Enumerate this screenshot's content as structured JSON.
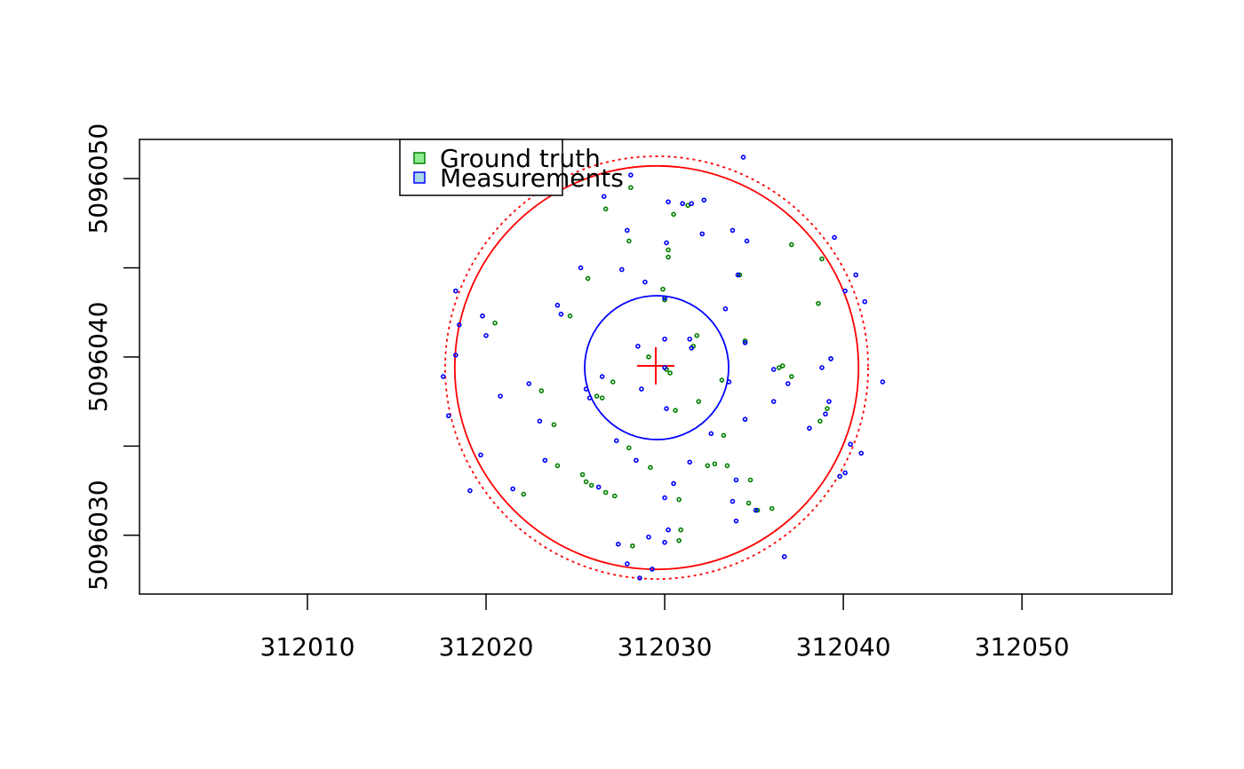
{
  "chart_data": {
    "type": "scatter",
    "xlim": [
      312000.6,
      312058.4
    ],
    "ylim": [
      5096026.7,
      5096052.2
    ],
    "xticks": [
      312010,
      312020,
      312030,
      312040,
      312050
    ],
    "yticks": [
      5096030,
      5096040,
      5096050
    ],
    "yminor_ticks": [
      5096035,
      5096045
    ],
    "legend": "top-left",
    "series": [
      {
        "name": "Ground truth",
        "color": "#008000",
        "legend_fill": "#90ee90",
        "x": [
          312026.7,
          312028.1,
          312030.5,
          312031.3,
          312028.0,
          312030.2,
          312030.2,
          312025.7,
          312037.1,
          312038.8,
          312034.2,
          312029.9,
          312030.0,
          312024.7,
          312020.5,
          312038.6,
          312031.8,
          312031.6,
          312029.1,
          312034.5,
          312036.6,
          312036.4,
          312037.1,
          312033.2,
          312027.1,
          312030.1,
          312030.3,
          312023.1,
          312026.2,
          312026.5,
          312031.9,
          312030.6,
          312039.1,
          312023.8,
          312028.0,
          312033.3,
          312038.7,
          312024.0,
          312029.2,
          312032.4,
          312032.8,
          312033.5,
          312025.4,
          312025.6,
          312025.9,
          312026.7,
          312027.2,
          312022.1,
          312034.8,
          312030.8,
          312034.7,
          312036.0,
          312035.2,
          312030.9,
          312028.2,
          312030.8,
          312039.3
        ],
        "y": [
          5096048.3,
          5096049.5,
          5096048.0,
          5096048.5,
          5096046.5,
          5096046.0,
          5096045.6,
          5096044.4,
          5096046.3,
          5096045.5,
          5096044.6,
          5096043.8,
          5096043.2,
          5096042.3,
          5096041.9,
          5096043.0,
          5096041.2,
          5096040.6,
          5096040.0,
          5096040.9,
          5096039.5,
          5096039.4,
          5096038.9,
          5096038.7,
          5096038.6,
          5096039.3,
          5096039.1,
          5096038.1,
          5096037.8,
          5096037.7,
          5096037.5,
          5096037.0,
          5096037.1,
          5096036.2,
          5096034.9,
          5096035.6,
          5096036.4,
          5096033.9,
          5096033.8,
          5096033.9,
          5096034.0,
          5096033.9,
          5096033.4,
          5096033.0,
          5096032.8,
          5096032.4,
          5096032.2,
          5096032.3,
          5096033.1,
          5096032.0,
          5096031.8,
          5096031.5,
          5096031.4,
          5096030.3,
          5096029.4,
          5096029.7,
          5096039.9
        ]
      },
      {
        "name": "Measurements",
        "color": "#0000ff",
        "legend_fill": "#add8e6",
        "x": [
          312034.4,
          312028.1,
          312026.6,
          312030.2,
          312031.0,
          312031.5,
          312032.2,
          312027.9,
          312033.8,
          312030.1,
          312032.1,
          312034.6,
          312039.5,
          312025.3,
          312027.6,
          312034.1,
          312040.7,
          312028.9,
          312040.1,
          312018.3,
          312030.0,
          312041.2,
          312024.0,
          312024.2,
          312033.4,
          312019.8,
          312018.5,
          312020.0,
          312031.4,
          312034.5,
          312028.5,
          312030.0,
          312031.5,
          312018.3,
          312039.3,
          312030.0,
          312036.1,
          312038.8,
          312026.5,
          312017.6,
          312022.4,
          312025.6,
          312025.8,
          312028.7,
          312033.6,
          312036.9,
          312042.2,
          312020.8,
          312036.1,
          312039.2,
          312017.9,
          312023.0,
          312030.1,
          312034.5,
          312039.0,
          312027.3,
          312032.6,
          312038.1,
          312040.4,
          312019.7,
          312041.0,
          312023.3,
          312028.4,
          312031.4,
          312040.1,
          312034.0,
          312039.8,
          312021.5,
          312019.1,
          312030.5,
          312030.0,
          312026.3,
          312033.8,
          312035.1,
          312030.2,
          312029.1,
          312030.0,
          312027.4,
          312034.0,
          312036.7,
          312027.9,
          312029.3,
          312028.6
        ],
        "y": [
          5096051.2,
          5096050.2,
          5096049.0,
          5096048.7,
          5096048.6,
          5096048.6,
          5096048.8,
          5096047.1,
          5096047.1,
          5096046.4,
          5096046.9,
          5096046.5,
          5096046.7,
          5096045.0,
          5096044.9,
          5096044.6,
          5096044.6,
          5096044.2,
          5096043.7,
          5096043.7,
          5096043.3,
          5096043.1,
          5096042.9,
          5096042.4,
          5096042.7,
          5096042.3,
          5096041.8,
          5096041.2,
          5096041.0,
          5096040.8,
          5096040.6,
          5096041.0,
          5096040.5,
          5096040.1,
          5096039.9,
          5096039.4,
          5096039.3,
          5096039.4,
          5096038.9,
          5096038.9,
          5096038.5,
          5096038.2,
          5096037.7,
          5096038.2,
          5096038.6,
          5096038.5,
          5096038.6,
          5096037.8,
          5096037.5,
          5096037.5,
          5096036.7,
          5096036.4,
          5096037.1,
          5096036.5,
          5096036.8,
          5096035.3,
          5096035.7,
          5096036.0,
          5096035.1,
          5096034.5,
          5096034.6,
          5096034.2,
          5096034.2,
          5096034.1,
          5096033.5,
          5096033.1,
          5096033.3,
          5096032.6,
          5096032.5,
          5096032.9,
          5096032.1,
          5096032.7,
          5096031.9,
          5096031.4,
          5096030.3,
          5096029.9,
          5096029.6,
          5096029.5,
          5096030.8,
          5096028.8,
          5096028.4,
          5096028.1,
          5096027.6
        ]
      }
    ],
    "circles": [
      {
        "x": 312029.55,
        "y": 5096039.4,
        "r": 11.3,
        "color": "#ff0000",
        "dashed": false
      },
      {
        "x": 312029.55,
        "y": 5096039.4,
        "r": 11.84,
        "color": "#ff0000",
        "dashed": true
      },
      {
        "x": 312029.55,
        "y": 5096039.4,
        "r": 4.03,
        "color": "#0000ff",
        "dashed": false
      }
    ],
    "center": {
      "x": 312029.5,
      "y": 5096039.5,
      "color": "#ff0000"
    }
  }
}
